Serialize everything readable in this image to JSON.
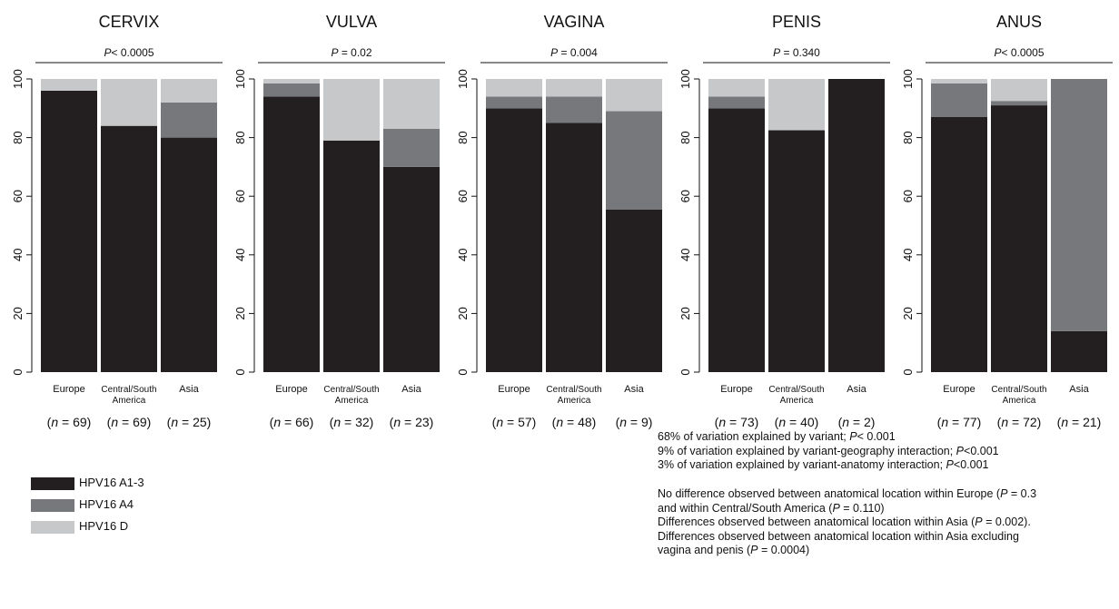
{
  "colors": {
    "a13": "#231f20",
    "a4": "#77787b",
    "d": "#c7c8ca"
  },
  "chart_data": {
    "type": "bar",
    "stacked": true,
    "ylim": [
      0,
      100
    ],
    "yticks": [
      "0",
      "20",
      "40",
      "60",
      "80",
      "100"
    ],
    "series_order": [
      "HPV16 A1-3",
      "HPV16 A4",
      "HPV16 D"
    ],
    "panels": [
      {
        "title": "CERVIX",
        "p_prefix": "P",
        "p_text": "< 0.0005",
        "categories": [
          {
            "name": "Europe",
            "lines": [
              "Europe"
            ]
          },
          {
            "name": "Central/South America",
            "lines": [
              "Central/South",
              "America"
            ]
          },
          {
            "name": "Asia",
            "lines": [
              "Asia"
            ]
          }
        ],
        "n_values": [
          "69",
          "69",
          "25"
        ],
        "series": [
          {
            "name": "HPV16 A1-3",
            "values": [
              96,
              84,
              80
            ]
          },
          {
            "name": "HPV16 A4",
            "values": [
              0,
              0,
              12
            ]
          },
          {
            "name": "HPV16 D",
            "values": [
              4,
              16,
              8
            ]
          }
        ]
      },
      {
        "title": "VULVA",
        "p_prefix": "P",
        "p_text": " = 0.02",
        "categories": [
          {
            "name": "Europe",
            "lines": [
              "Europe"
            ]
          },
          {
            "name": "Central/South America",
            "lines": [
              "Central/South",
              "America"
            ]
          },
          {
            "name": "Asia",
            "lines": [
              "Asia"
            ]
          }
        ],
        "n_values": [
          "66",
          "32",
          "23"
        ],
        "series": [
          {
            "name": "HPV16 A1-3",
            "values": [
              94,
              79,
              70
            ]
          },
          {
            "name": "HPV16 A4",
            "values": [
              4.5,
              0,
              13
            ]
          },
          {
            "name": "HPV16 D",
            "values": [
              1.5,
              21,
              17
            ]
          }
        ]
      },
      {
        "title": "VAGINA",
        "p_prefix": "P",
        "p_text": " = 0.004",
        "categories": [
          {
            "name": "Europe",
            "lines": [
              "Europe"
            ]
          },
          {
            "name": "Central/South America",
            "lines": [
              "Central/South",
              "America"
            ]
          },
          {
            "name": "Asia",
            "lines": [
              "Asia"
            ]
          }
        ],
        "n_values": [
          "57",
          "48",
          "9"
        ],
        "series": [
          {
            "name": "HPV16 A1-3",
            "values": [
              90,
              85,
              55.5
            ]
          },
          {
            "name": "HPV16 A4",
            "values": [
              4,
              9,
              33.5
            ]
          },
          {
            "name": "HPV16 D",
            "values": [
              6,
              6,
              11
            ]
          }
        ]
      },
      {
        "title": "PENIS",
        "p_prefix": "P",
        "p_text": " = 0.340",
        "categories": [
          {
            "name": "Europe",
            "lines": [
              "Europe"
            ]
          },
          {
            "name": "Central/South America",
            "lines": [
              "Central/South",
              "America"
            ]
          },
          {
            "name": "Asia",
            "lines": [
              "Asia"
            ]
          }
        ],
        "n_values": [
          "73",
          "40",
          "2"
        ],
        "series": [
          {
            "name": "HPV16 A1-3",
            "values": [
              90,
              82.5,
              100
            ]
          },
          {
            "name": "HPV16 A4",
            "values": [
              4,
              0,
              0
            ]
          },
          {
            "name": "HPV16 D",
            "values": [
              6,
              17.5,
              0
            ]
          }
        ]
      },
      {
        "title": "ANUS",
        "p_prefix": "P",
        "p_text": "< 0.0005",
        "categories": [
          {
            "name": "Europe",
            "lines": [
              "Europe"
            ]
          },
          {
            "name": "Central/South America",
            "lines": [
              "Central/South",
              "America"
            ]
          },
          {
            "name": "Asia",
            "lines": [
              "Asia"
            ]
          }
        ],
        "n_values": [
          "77",
          "72",
          "21"
        ],
        "series": [
          {
            "name": "HPV16 A1-3",
            "values": [
              87,
              91,
              14
            ]
          },
          {
            "name": "HPV16 A4",
            "values": [
              11.5,
              1.5,
              86
            ]
          },
          {
            "name": "HPV16 D",
            "values": [
              1.5,
              7.5,
              0
            ]
          }
        ]
      }
    ]
  },
  "legend": [
    {
      "label": "HPV16 A1-3",
      "color": "#231f20"
    },
    {
      "label": "HPV16 A4",
      "color": "#77787b"
    },
    {
      "label": "HPV16 D",
      "color": "#c7c8ca"
    }
  ],
  "notes": {
    "block1": [
      {
        "before": "68% of variation explained by variant; ",
        "p": "P",
        "after": "< 0.001"
      },
      {
        "before": "9% of variation explained by variant-geography interaction; ",
        "p": "P",
        "after": "<0.001"
      },
      {
        "before": "3% of variation explained by variant-anatomy interaction; ",
        "p": "P",
        "after": "<0.001"
      }
    ],
    "block2": [
      {
        "before": "No difference observed between anatomical location within Europe (",
        "p": "P",
        "after": " = 0.3"
      },
      {
        "before": "and within Central/South America (",
        "p": "P",
        "after": " = 0.110)"
      },
      {
        "before": "Differences observed between anatomical location within Asia (",
        "p": "P",
        "after": " = 0.002)."
      },
      {
        "before": "Differences observed between anatomical location within Asia excluding",
        "p": "",
        "after": ""
      },
      {
        "before": "vagina and penis (",
        "p": "P",
        "after": " = 0.0004)"
      }
    ]
  }
}
